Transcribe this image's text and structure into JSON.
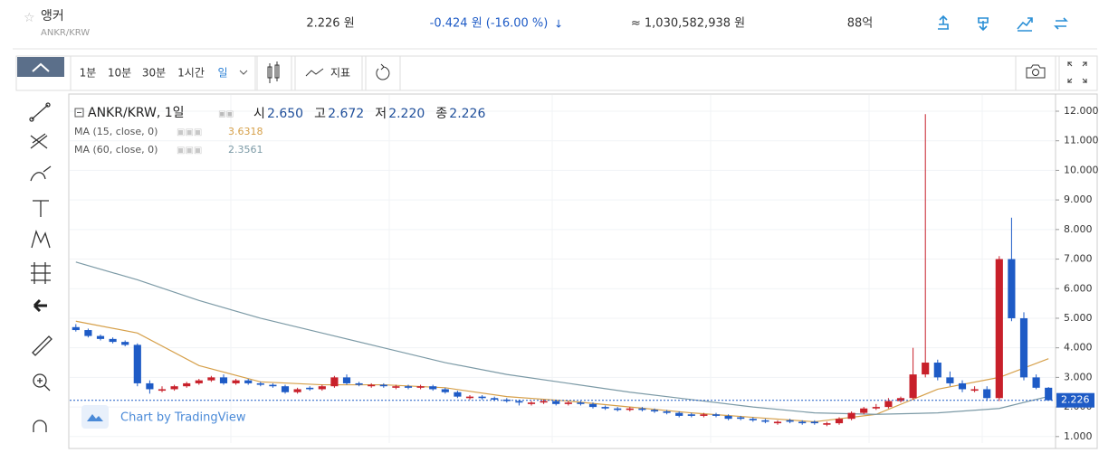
{
  "header": {
    "name": "앵커",
    "pair": "ANKR/KRW",
    "price": "2.226 원",
    "change": "-0.424 원 (-16.00 %)",
    "volume": "≈ 1,030,582,938 원",
    "cap": "88억"
  },
  "toolbar": {
    "intervals": [
      "1분",
      "10분",
      "30분",
      "1시간",
      "일"
    ],
    "indicators": "지표"
  },
  "chart_data": {
    "type": "candlestick",
    "legend": {
      "symbol": "ANKR/KRW, 1일",
      "open_label": "시",
      "open": "2.650",
      "high_label": "고",
      "high": "2.672",
      "low_label": "저",
      "low": "2.220",
      "close_label": "종",
      "close": "2.226"
    },
    "watermark": "Chart by TradingView",
    "up_color": "#c8202a",
    "down_color": "#1e5bc6",
    "xlim": [
      -0.5,
      79.5
    ],
    "ylim": [
      0.78,
      12.55
    ],
    "yticks": [
      {
        "value": 1,
        "label": "1.000"
      },
      {
        "value": 2,
        "label": "2.000"
      },
      {
        "value": 3,
        "label": "3.000"
      },
      {
        "value": 4,
        "label": "4.000"
      },
      {
        "value": 5,
        "label": "5.000"
      },
      {
        "value": 6,
        "label": "6.000"
      },
      {
        "value": 7,
        "label": "7.000"
      },
      {
        "value": 8,
        "label": "8.000"
      },
      {
        "value": 9,
        "label": "9.000"
      },
      {
        "value": 10,
        "label": "10.000"
      },
      {
        "value": 11,
        "label": "11.000"
      },
      {
        "value": 12,
        "label": "12.000"
      }
    ],
    "candles": {
      "open": [
        4.7,
        4.6,
        4.4,
        4.3,
        4.2,
        4.1,
        2.8,
        2.55,
        2.6,
        2.7,
        2.8,
        2.9,
        3.0,
        2.8,
        2.9,
        2.8,
        2.75,
        2.7,
        2.5,
        2.65,
        2.6,
        2.7,
        3.0,
        2.8,
        2.7,
        2.75,
        2.65,
        2.7,
        2.65,
        2.7,
        2.6,
        2.5,
        2.3,
        2.35,
        2.3,
        2.25,
        2.2,
        2.1,
        2.15,
        2.2,
        2.1,
        2.15,
        2.1,
        2.0,
        1.95,
        1.9,
        1.95,
        1.9,
        1.85,
        1.8,
        1.75,
        1.7,
        1.75,
        1.7,
        1.65,
        1.6,
        1.55,
        1.45,
        1.55,
        1.5,
        1.5,
        1.4,
        1.45,
        1.6,
        1.8,
        1.95,
        2.0,
        2.2,
        2.3,
        3.1,
        3.5,
        3.0,
        2.8,
        2.55,
        2.6,
        2.3,
        7.0,
        5.0,
        3.0,
        2.65
      ],
      "high": [
        4.8,
        4.65,
        4.45,
        4.35,
        4.25,
        4.15,
        2.9,
        2.7,
        2.75,
        2.85,
        2.95,
        3.05,
        3.1,
        2.95,
        2.95,
        2.85,
        2.8,
        2.75,
        2.65,
        2.7,
        2.75,
        3.05,
        3.1,
        2.85,
        2.8,
        2.8,
        2.75,
        2.75,
        2.75,
        2.75,
        2.65,
        2.55,
        2.4,
        2.4,
        2.35,
        2.3,
        2.25,
        2.2,
        2.25,
        2.25,
        2.2,
        2.2,
        2.15,
        2.05,
        2.0,
        2.0,
        2.0,
        1.95,
        1.9,
        1.85,
        1.8,
        1.8,
        1.8,
        1.75,
        1.7,
        1.65,
        1.6,
        1.55,
        1.6,
        1.55,
        1.55,
        1.5,
        1.65,
        1.85,
        2.0,
        2.1,
        2.3,
        2.35,
        4.0,
        11.9,
        3.6,
        3.2,
        2.9,
        2.7,
        2.7,
        7.1,
        8.4,
        5.2,
        3.1,
        2.672
      ],
      "low": [
        4.55,
        4.35,
        4.25,
        4.15,
        4.05,
        2.7,
        2.45,
        2.5,
        2.55,
        2.65,
        2.75,
        2.85,
        2.75,
        2.75,
        2.75,
        2.7,
        2.65,
        2.45,
        2.45,
        2.55,
        2.55,
        2.65,
        2.75,
        2.7,
        2.65,
        2.65,
        2.6,
        2.6,
        2.6,
        2.55,
        2.45,
        2.3,
        2.25,
        2.25,
        2.2,
        2.15,
        2.05,
        2.05,
        2.1,
        2.05,
        2.05,
        2.05,
        1.95,
        1.9,
        1.85,
        1.85,
        1.85,
        1.8,
        1.75,
        1.65,
        1.65,
        1.65,
        1.65,
        1.55,
        1.55,
        1.5,
        1.45,
        1.4,
        1.45,
        1.4,
        1.4,
        1.35,
        1.4,
        1.55,
        1.75,
        1.9,
        1.95,
        2.15,
        2.25,
        3.0,
        2.9,
        2.7,
        2.5,
        2.5,
        2.2,
        2.2,
        4.9,
        2.9,
        2.6,
        2.22
      ],
      "close": [
        4.6,
        4.4,
        4.3,
        4.2,
        4.1,
        2.8,
        2.6,
        2.6,
        2.7,
        2.8,
        2.9,
        3.0,
        2.8,
        2.9,
        2.8,
        2.75,
        2.7,
        2.5,
        2.6,
        2.6,
        2.7,
        3.0,
        2.8,
        2.75,
        2.75,
        2.7,
        2.7,
        2.65,
        2.7,
        2.6,
        2.5,
        2.35,
        2.35,
        2.3,
        2.25,
        2.2,
        2.15,
        2.15,
        2.2,
        2.1,
        2.15,
        2.1,
        2.0,
        1.95,
        1.9,
        1.95,
        1.9,
        1.85,
        1.8,
        1.7,
        1.7,
        1.75,
        1.7,
        1.6,
        1.6,
        1.55,
        1.5,
        1.5,
        1.5,
        1.45,
        1.45,
        1.45,
        1.6,
        1.8,
        1.95,
        2.0,
        2.2,
        2.3,
        3.1,
        3.5,
        3.0,
        2.8,
        2.6,
        2.6,
        2.3,
        7.0,
        5.0,
        3.0,
        2.65,
        2.226
      ]
    },
    "series": [
      {
        "name": "MA (15, close, 0)",
        "color": "#d6a04a",
        "value_label": "3.6318",
        "x": [
          0,
          5,
          10,
          15,
          20,
          25,
          30,
          35,
          40,
          45,
          50,
          55,
          60,
          65,
          70,
          75,
          79
        ],
        "values": [
          4.9,
          4.5,
          3.4,
          2.85,
          2.75,
          2.75,
          2.65,
          2.35,
          2.2,
          2.0,
          1.8,
          1.65,
          1.5,
          1.75,
          2.6,
          3.0,
          3.6318
        ]
      },
      {
        "name": "MA (60, close, 0)",
        "color": "#7c9aa6",
        "value_label": "2.3561",
        "x": [
          0,
          5,
          10,
          15,
          20,
          25,
          30,
          35,
          40,
          45,
          50,
          55,
          60,
          65,
          70,
          75,
          79
        ],
        "values": [
          6.9,
          6.3,
          5.6,
          5.0,
          4.5,
          4.0,
          3.5,
          3.1,
          2.8,
          2.5,
          2.25,
          2.0,
          1.8,
          1.75,
          1.8,
          1.95,
          2.3561
        ]
      }
    ]
  }
}
